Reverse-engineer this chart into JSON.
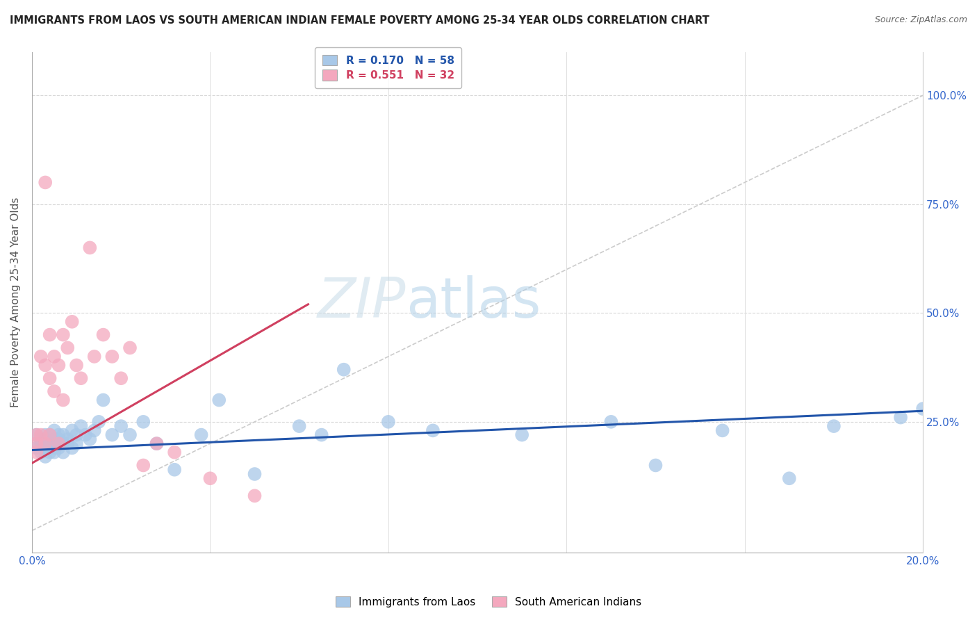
{
  "title": "IMMIGRANTS FROM LAOS VS SOUTH AMERICAN INDIAN FEMALE POVERTY AMONG 25-34 YEAR OLDS CORRELATION CHART",
  "source": "Source: ZipAtlas.com",
  "ylabel": "Female Poverty Among 25-34 Year Olds",
  "xlim": [
    0.0,
    0.2
  ],
  "ylim": [
    -0.05,
    1.1
  ],
  "right_ytick_vals": [
    0.0,
    0.25,
    0.5,
    0.75,
    1.0
  ],
  "right_yticklabels": [
    "",
    "25.0%",
    "50.0%",
    "75.0%",
    "100.0%"
  ],
  "legend_r1": "R = 0.170   N = 58",
  "legend_r2": "R = 0.551   N = 32",
  "blue_color": "#a8c8e8",
  "pink_color": "#f4a8be",
  "blue_line_color": "#2255aa",
  "pink_line_color": "#d04060",
  "diag_color": "#cccccc",
  "watermark_zip": "ZIP",
  "watermark_atlas": "atlas",
  "blue_scatter_x": [
    0.001,
    0.001,
    0.002,
    0.002,
    0.002,
    0.003,
    0.003,
    0.003,
    0.003,
    0.004,
    0.004,
    0.004,
    0.004,
    0.005,
    0.005,
    0.005,
    0.005,
    0.005,
    0.006,
    0.006,
    0.006,
    0.007,
    0.007,
    0.007,
    0.008,
    0.008,
    0.009,
    0.009,
    0.01,
    0.01,
    0.011,
    0.012,
    0.013,
    0.014,
    0.015,
    0.016,
    0.018,
    0.02,
    0.022,
    0.025,
    0.028,
    0.032,
    0.038,
    0.042,
    0.05,
    0.06,
    0.065,
    0.07,
    0.08,
    0.09,
    0.11,
    0.13,
    0.14,
    0.155,
    0.17,
    0.18,
    0.195,
    0.2
  ],
  "blue_scatter_y": [
    0.19,
    0.22,
    0.18,
    0.21,
    0.2,
    0.22,
    0.19,
    0.17,
    0.21,
    0.2,
    0.18,
    0.22,
    0.2,
    0.21,
    0.19,
    0.23,
    0.18,
    0.2,
    0.22,
    0.19,
    0.21,
    0.2,
    0.22,
    0.18,
    0.21,
    0.2,
    0.23,
    0.19,
    0.22,
    0.2,
    0.24,
    0.22,
    0.21,
    0.23,
    0.25,
    0.3,
    0.22,
    0.24,
    0.22,
    0.25,
    0.2,
    0.14,
    0.22,
    0.3,
    0.13,
    0.24,
    0.22,
    0.37,
    0.25,
    0.23,
    0.22,
    0.25,
    0.15,
    0.23,
    0.12,
    0.24,
    0.26,
    0.28
  ],
  "pink_scatter_x": [
    0.001,
    0.001,
    0.001,
    0.002,
    0.002,
    0.003,
    0.003,
    0.003,
    0.004,
    0.004,
    0.004,
    0.005,
    0.005,
    0.006,
    0.006,
    0.007,
    0.007,
    0.008,
    0.009,
    0.01,
    0.011,
    0.013,
    0.014,
    0.016,
    0.018,
    0.02,
    0.022,
    0.025,
    0.028,
    0.032,
    0.04,
    0.05
  ],
  "pink_scatter_y": [
    0.2,
    0.22,
    0.18,
    0.4,
    0.22,
    0.8,
    0.38,
    0.2,
    0.45,
    0.35,
    0.22,
    0.32,
    0.4,
    0.38,
    0.2,
    0.45,
    0.3,
    0.42,
    0.48,
    0.38,
    0.35,
    0.65,
    0.4,
    0.45,
    0.4,
    0.35,
    0.42,
    0.15,
    0.2,
    0.18,
    0.12,
    0.08
  ],
  "blue_trend_x": [
    0.0,
    0.2
  ],
  "blue_trend_y": [
    0.185,
    0.275
  ],
  "pink_trend_x": [
    0.0,
    0.062
  ],
  "pink_trend_y": [
    0.155,
    0.52
  ]
}
